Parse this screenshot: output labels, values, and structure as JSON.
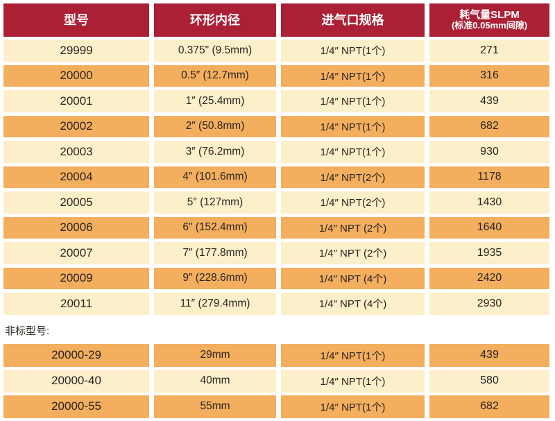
{
  "colors": {
    "header_bg": "#AB2035",
    "header_text": "#FFFFFF",
    "row_light": "#FDEFC9",
    "row_orange": "#F3AE5E",
    "cell_text": "#292321"
  },
  "table": {
    "headers": [
      {
        "label": "型号"
      },
      {
        "label": "环形内径"
      },
      {
        "label": "进气口规格"
      },
      {
        "label": "耗气量SLPM",
        "sub": "(标准0.05mm间隙)"
      }
    ],
    "rows": [
      [
        "29999",
        "0.375\" (9.5mm)",
        "1/4″ NPT(1个)",
        "271"
      ],
      [
        "20000",
        "0.5″ (12.7mm)",
        "1/4″ NPT(1个)",
        "316"
      ],
      [
        "20001",
        "1″ (25.4mm)",
        "1/4″ NPT(1个)",
        "439"
      ],
      [
        "20002",
        "2″ (50.8mm)",
        "1/4″ NPT(1个)",
        "682"
      ],
      [
        "20003",
        "3″ (76.2mm)",
        "1/4″ NPT(1个)",
        "930"
      ],
      [
        "20004",
        "4″ (101.6mm)",
        "1/4″ NPT(2个)",
        "1178"
      ],
      [
        "20005",
        "5″ (127mm)",
        "1/4″ NPT(2个)",
        "1430"
      ],
      [
        "20006",
        "6″ (152.4mm)",
        "1/4″ NPT (2个)",
        "1640"
      ],
      [
        "20007",
        "7″ (177.8mm)",
        "1/4″ NPT (2个)",
        "1935"
      ],
      [
        "20009",
        "9″ (228.6mm)",
        "1/4″ NPT (4个)",
        "2420"
      ],
      [
        "20011",
        "11″ (279.4mm)",
        "1/4″ NPT (4个)",
        "2930"
      ]
    ]
  },
  "nonstandard": {
    "label": "非标型号:",
    "rows": [
      [
        "20000-29",
        "29mm",
        "1/4″ NPT(1个)",
        "439"
      ],
      [
        "20000-40",
        "40mm",
        "1/4″ NPT(1个)",
        "580"
      ],
      [
        "20000-55",
        "55mm",
        "1/4″ NPT(1个)",
        "682"
      ]
    ]
  }
}
